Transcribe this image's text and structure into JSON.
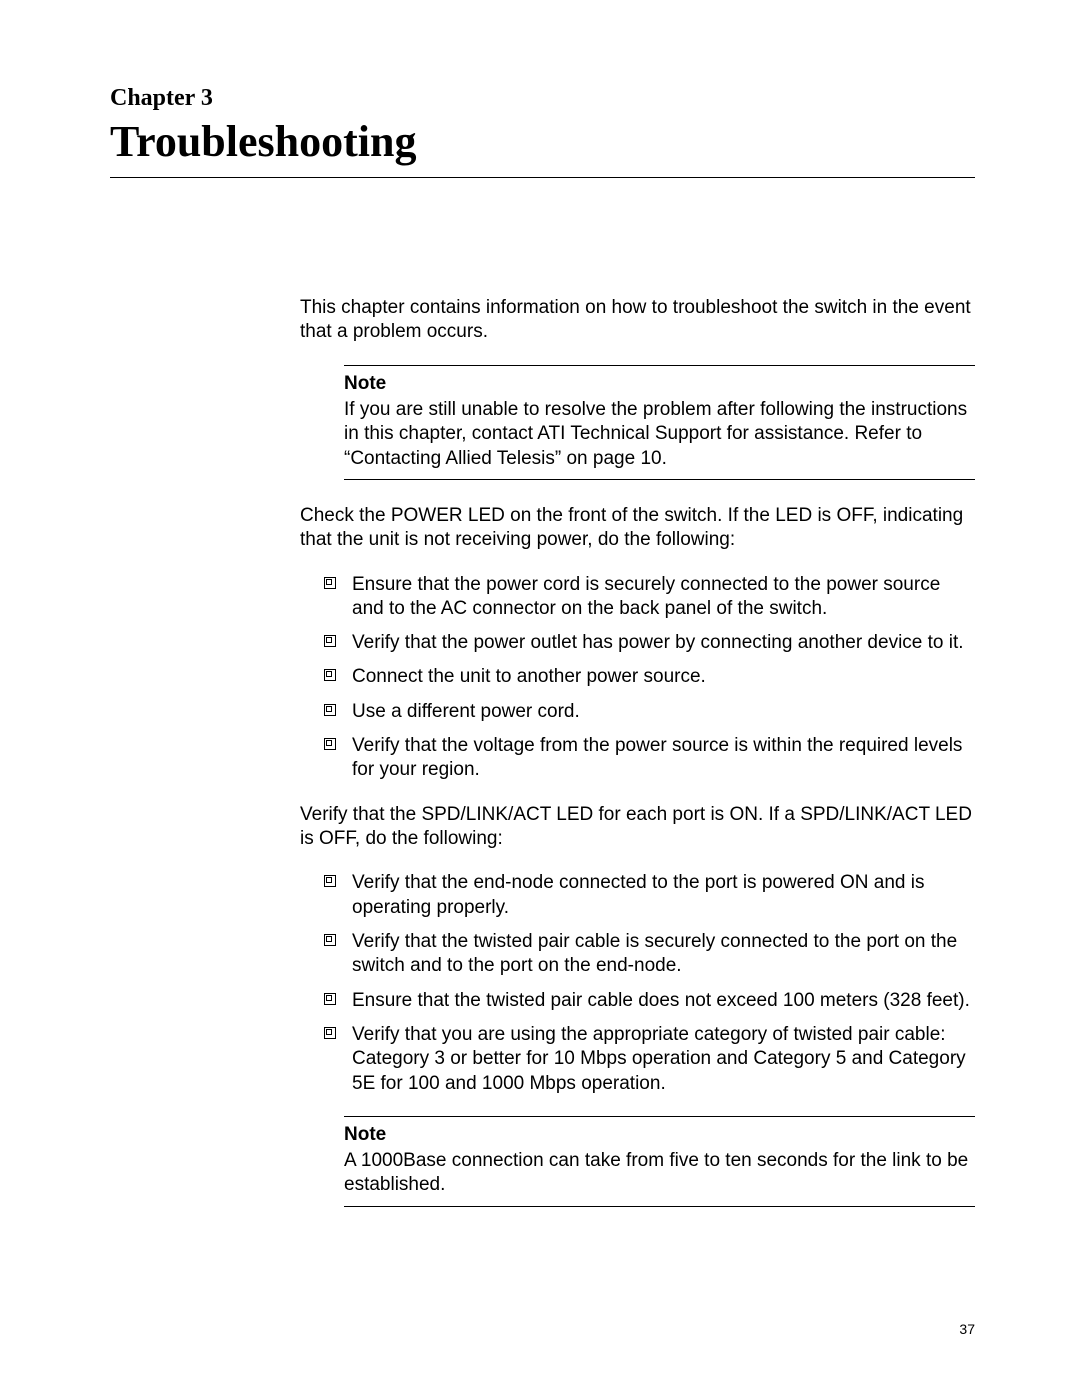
{
  "chapter_label": "Chapter 3",
  "chapter_title": "Troubleshooting",
  "intro": "This chapter contains information on how to troubleshoot the switch in the event that a problem occurs.",
  "note1": {
    "label": "Note",
    "text": "If you are still unable to resolve the problem after following the instructions in this chapter, contact ATI Technical Support for assistance. Refer to “Contacting Allied Telesis” on page 10."
  },
  "power_para": "Check the POWER LED on the front of the switch. If the LED is OFF, indicating that the unit is not receiving power, do the following:",
  "power_list": [
    "Ensure that the power cord is securely connected to the power source and to the AC connector on the back panel of the switch.",
    "Verify that the power outlet has power by connecting another device to it.",
    "Connect the unit to another power source.",
    "Use a different power cord.",
    "Verify that the voltage from the power source is within the required levels for your region."
  ],
  "link_para": "Verify that the SPD/LINK/ACT LED for each port is ON. If a SPD/LINK/ACT LED is OFF, do the following:",
  "link_list": [
    "Verify that the end-node connected to the port is powered ON and is operating properly.",
    "Verify that the twisted pair cable is securely connected to the port on the switch and to the port on the end-node.",
    "Ensure that the twisted pair cable does not exceed 100 meters (328 feet).",
    "Verify that you are using the appropriate category of twisted pair cable: Category 3 or better for 10 Mbps operation and Category 5 and Category 5E for 100 and 1000 Mbps operation."
  ],
  "note2": {
    "label": "Note",
    "text": "A 1000Base connection can take from five to ten seconds for the link to be established."
  },
  "page_number": "37"
}
